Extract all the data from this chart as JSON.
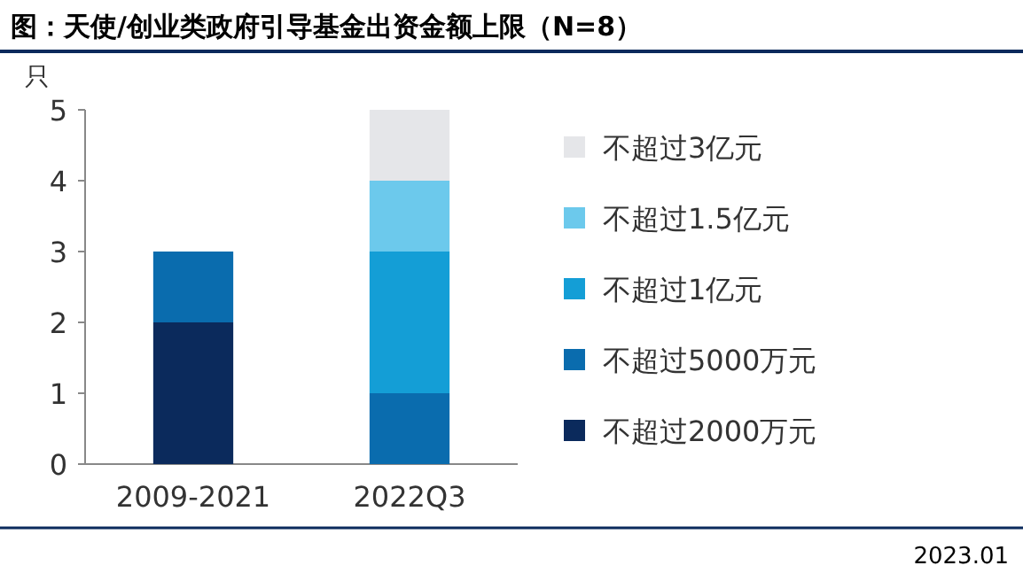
{
  "chart_data": {
    "type": "bar",
    "title": "图：天使/创业类政府引导基金出资金额上限（N=8）",
    "ylabel": "只",
    "categories": [
      "2009-2021",
      "2022Q3"
    ],
    "stacked": true,
    "ylim": [
      0,
      5
    ],
    "yticks": [
      0,
      1,
      2,
      3,
      4,
      5
    ],
    "legend": "right",
    "series": [
      {
        "name": "不超过2000万元",
        "color": "#0b2a5c",
        "values": [
          2,
          0
        ]
      },
      {
        "name": "不超过5000万元",
        "color": "#0a6cae",
        "values": [
          1,
          1
        ]
      },
      {
        "name": "不超过1亿元",
        "color": "#149ed6",
        "values": [
          0,
          2
        ]
      },
      {
        "name": "不超过1.5亿元",
        "color": "#6cc9ec",
        "values": [
          0,
          1
        ]
      },
      {
        "name": "不超过3亿元",
        "color": "#e5e6e9",
        "values": [
          0,
          1
        ]
      }
    ],
    "annotations": [
      "2023.01"
    ]
  }
}
